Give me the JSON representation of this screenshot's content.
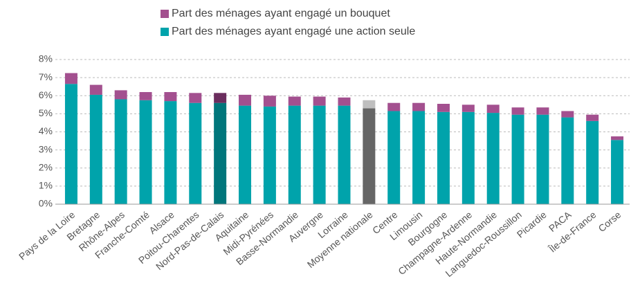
{
  "chart_data": {
    "type": "stacked_bar",
    "categories": [
      "Pays de la Loire",
      "Bretagne",
      "Rhône-Alpes",
      "Franche-Comté",
      "Alsace",
      "Poitou-Charentes",
      "Nord-Pas-de-Calais",
      "Aquitaine",
      "Midi-Pyrénées",
      "Basse-Normandie",
      "Auvergne",
      "Lorraine",
      "Moyenne nationale",
      "Centre",
      "Limousin",
      "Bourgogne",
      "Champagne-Ardenne",
      "Haute-Normandie",
      "Languedoc-Roussillon",
      "Picardie",
      "PACA",
      "Île-de-France",
      "Corse"
    ],
    "series": [
      {
        "name": "Part des ménages ayant engagé une action seule",
        "color": "#00a3ab",
        "colors": [
          "#00a3ab",
          "#00a3ab",
          "#00a3ab",
          "#00a3ab",
          "#00a3ab",
          "#00a3ab",
          "#00767b",
          "#00a3ab",
          "#00a3ab",
          "#00a3ab",
          "#00a3ab",
          "#00a3ab",
          "#666666",
          "#00a3ab",
          "#00a3ab",
          "#00a3ab",
          "#00a3ab",
          "#00a3ab",
          "#00a3ab",
          "#00a3ab",
          "#00a3ab",
          "#00a3ab",
          "#00a3ab"
        ],
        "values": [
          6.65,
          6.05,
          5.8,
          5.75,
          5.7,
          5.6,
          5.6,
          5.45,
          5.4,
          5.45,
          5.45,
          5.45,
          5.3,
          5.15,
          5.15,
          5.1,
          5.1,
          5.05,
          4.95,
          4.95,
          4.8,
          4.6,
          3.55
        ]
      },
      {
        "name": "Part des ménages ayant engagé un bouquet",
        "color": "#a3508f",
        "colors": [
          "#a3508f",
          "#a3508f",
          "#a3508f",
          "#a3508f",
          "#a3508f",
          "#a3508f",
          "#6b2d5e",
          "#a3508f",
          "#a3508f",
          "#a3508f",
          "#a3508f",
          "#a3508f",
          "#bfbfbf",
          "#a3508f",
          "#a3508f",
          "#a3508f",
          "#a3508f",
          "#a3508f",
          "#a3508f",
          "#a3508f",
          "#a3508f",
          "#a3508f",
          "#a3508f"
        ],
        "values": [
          0.6,
          0.55,
          0.5,
          0.45,
          0.5,
          0.55,
          0.55,
          0.6,
          0.6,
          0.5,
          0.5,
          0.45,
          0.45,
          0.45,
          0.45,
          0.45,
          0.4,
          0.45,
          0.4,
          0.4,
          0.35,
          0.35,
          0.2
        ]
      }
    ],
    "ylim": [
      0,
      8
    ],
    "yticks": [
      {
        "value": 0,
        "label": "0%"
      },
      {
        "value": 1,
        "label": "1%"
      },
      {
        "value": 2,
        "label": "2%"
      },
      {
        "value": 3,
        "label": "3%"
      },
      {
        "value": 4,
        "label": "4%"
      },
      {
        "value": 5,
        "label": "5%"
      },
      {
        "value": 6,
        "label": "6%"
      },
      {
        "value": 7,
        "label": "7%"
      },
      {
        "value": 8,
        "label": "8%"
      }
    ],
    "grid": true,
    "legend": "top"
  }
}
